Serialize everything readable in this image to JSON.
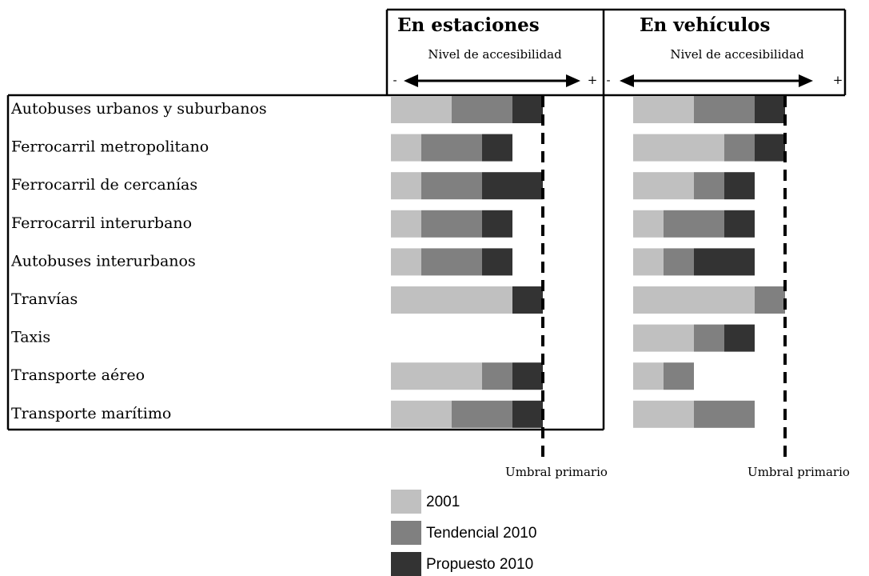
{
  "chart_data": {
    "type": "stacked-bar-horizontal",
    "categories": [
      "Autobuses urbanos y suburbanos",
      "Ferrocarril metropolitano",
      "Ferrocarril de cercanías",
      "Ferrocarril interurbano",
      "Autobuses interurbanos",
      "Tranvías",
      "Taxis",
      "Transporte aéreo",
      "Transporte marítimo"
    ],
    "series": [
      {
        "name": "2001",
        "color": "#c0c0c0"
      },
      {
        "name": "Tendencial 2010",
        "color": "#808080"
      },
      {
        "name": "Propuesto 2010",
        "color": "#333333"
      }
    ],
    "xlim": [
      0,
      7
    ],
    "panels": [
      {
        "title": "En estaciones",
        "axis_label": "Nivel de accesibilidad",
        "min_label": "-",
        "max_label": "+",
        "threshold": 5,
        "threshold_label": "Umbral primario",
        "values": [
          [
            2,
            1,
            1,
            1,
            1,
            4,
            0,
            3,
            2
          ],
          [
            2,
            2,
            2,
            2,
            2,
            0,
            0,
            1,
            2
          ],
          [
            1,
            1,
            2,
            1,
            1,
            1,
            0,
            1,
            1
          ]
        ]
      },
      {
        "title": "En vehículos",
        "axis_label": "Nivel de accesibilidad",
        "min_label": "-",
        "max_label": "+",
        "threshold": 5,
        "threshold_label": "Umbral primario",
        "values": [
          [
            2,
            3,
            2,
            1,
            1,
            4,
            2,
            1,
            2
          ],
          [
            2,
            1,
            1,
            2,
            1,
            1,
            1,
            1,
            2
          ],
          [
            1,
            1,
            1,
            1,
            2,
            0,
            1,
            0,
            0
          ]
        ]
      }
    ]
  }
}
